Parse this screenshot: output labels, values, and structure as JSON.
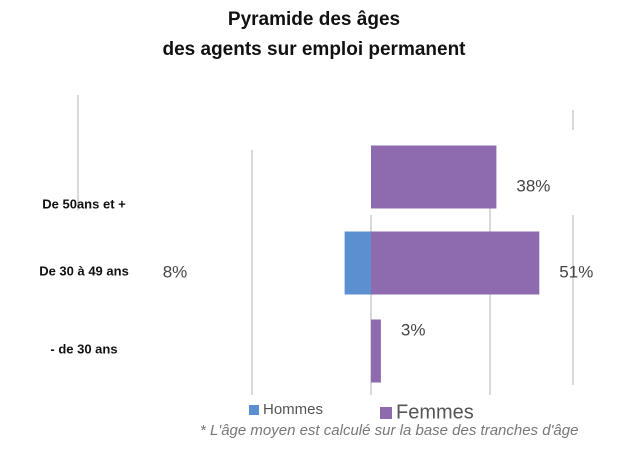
{
  "chart_data": {
    "type": "pyramid",
    "title": [
      "Pyramide des âges",
      "des agents sur emploi permanent"
    ],
    "categories": [
      "De 50ans et +",
      "De 30 à 49 ans",
      "- de 30 ans"
    ],
    "series": [
      {
        "name": "Hommes",
        "color": "#5b8fd0",
        "values": [
          null,
          8,
          null
        ],
        "value_labels": [
          null,
          "8%",
          null
        ]
      },
      {
        "name": "Femmes",
        "color": "#8e6aae",
        "values": [
          38,
          51,
          3
        ],
        "value_labels": [
          "38%",
          "51%",
          "3%"
        ]
      }
    ],
    "footnote": "* L'âge moyen est calculé sur la base des tranches d'âge"
  }
}
